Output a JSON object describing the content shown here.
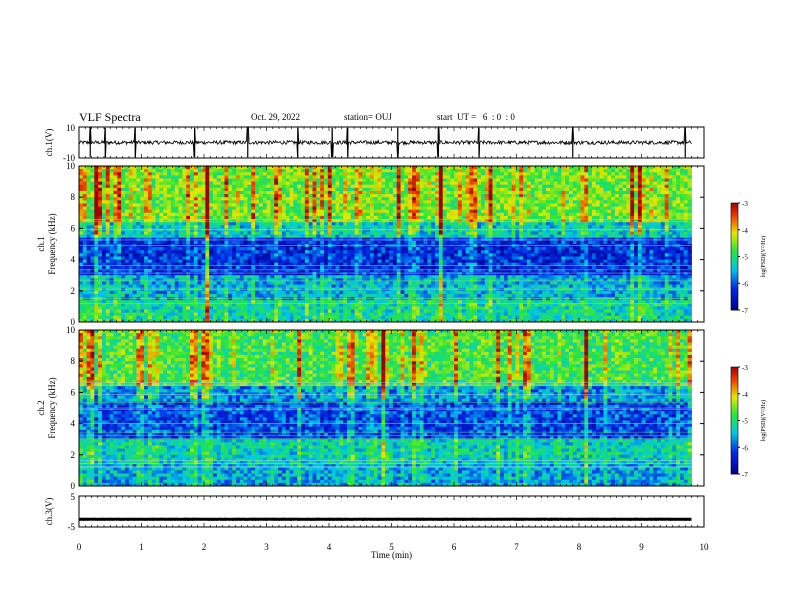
{
  "header": {
    "title": "VLF Spectra",
    "date": "Oct. 29, 2022",
    "station": "station= OUJ",
    "start": "start  UT =   6  : 0  : 0"
  },
  "chart_data": [
    {
      "type": "line",
      "ylabel": "ch.1(V)",
      "ylim": [
        -10,
        10
      ],
      "yticks": [
        "10",
        "-10"
      ],
      "series": [
        {
          "baseline": 0,
          "noise_amplitude": 1.2,
          "spike_times_min": [
            0.18,
            0.42,
            0.9,
            1.85,
            2.7,
            3.5,
            4.05,
            4.3,
            5.1,
            5.75,
            6.4,
            7.9,
            9.7
          ]
        }
      ]
    },
    {
      "type": "heatmap",
      "ylabel_line1": "ch.1",
      "ylabel_line2": "Frequency  (kHz)",
      "xlim": [
        0,
        10
      ],
      "ylim": [
        0,
        10
      ],
      "yticks": [
        "0",
        "2",
        "4",
        "6",
        "8",
        "10"
      ],
      "data_end_min": 9.8,
      "colorbar": {
        "range": [
          -7,
          -3
        ],
        "ticks": [
          "-3",
          "-4",
          "-5",
          "-6",
          "-7"
        ],
        "label": "log(PSD)(V²/Hz)"
      },
      "bands": [
        {
          "from_khz": 0,
          "to_khz": 1.5,
          "level": -5.2
        },
        {
          "from_khz": 1.5,
          "to_khz": 3.0,
          "level": -5.6
        },
        {
          "from_khz": 3.0,
          "to_khz": 5.5,
          "level": -6.3
        },
        {
          "from_khz": 5.5,
          "to_khz": 6.5,
          "level": -5.4
        },
        {
          "from_khz": 6.5,
          "to_khz": 10,
          "level": -4.6
        }
      ]
    },
    {
      "type": "heatmap",
      "ylabel_line1": "ch.2",
      "ylabel_line2": "Frequency  (kHz)",
      "xlim": [
        0,
        10
      ],
      "ylim": [
        0,
        10
      ],
      "yticks": [
        "0",
        "2",
        "4",
        "6",
        "8",
        "10"
      ],
      "data_end_min": 9.8,
      "colorbar": {
        "range": [
          -7,
          -3
        ],
        "ticks": [
          "-3",
          "-4",
          "-5",
          "-6",
          "-7"
        ],
        "label": "log(PSD)(V²/Hz)"
      },
      "bands": [
        {
          "from_khz": 0,
          "to_khz": 1.5,
          "level": -5.6
        },
        {
          "from_khz": 1.5,
          "to_khz": 3.0,
          "level": -5.3
        },
        {
          "from_khz": 3.0,
          "to_khz": 5.5,
          "level": -6.1
        },
        {
          "from_khz": 5.5,
          "to_khz": 6.5,
          "level": -5.7
        },
        {
          "from_khz": 6.5,
          "to_khz": 10,
          "level": -4.8
        }
      ]
    },
    {
      "type": "line",
      "ylabel": "ch.3(V)",
      "ylim": [
        -5,
        5
      ],
      "yticks": [
        "5",
        "-5"
      ],
      "xlabel": "Time  (min)",
      "xticks": [
        "0",
        "1",
        "2",
        "3",
        "4",
        "5",
        "6",
        "7",
        "8",
        "9",
        "10"
      ],
      "series": [
        {
          "baseline": -2.5,
          "noise_amplitude": 0.05
        }
      ]
    }
  ],
  "colors": {
    "axis": "#000000",
    "trace": "#000000"
  }
}
